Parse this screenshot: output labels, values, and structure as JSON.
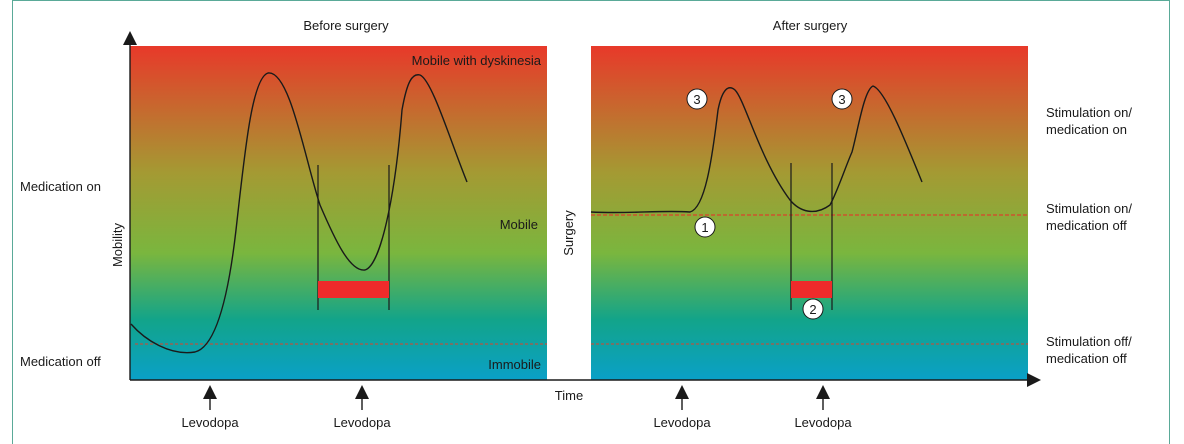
{
  "panels": {
    "before_title": "Before surgery",
    "after_title": "After surgery"
  },
  "axes": {
    "y_label": "Mobility",
    "x_label": "Time",
    "surgery_label": "Surgery"
  },
  "left_levels": {
    "medication_on": "Medication on",
    "medication_off": "Medication off"
  },
  "zones": {
    "top": "Mobile with dyskinesia",
    "middle": "Mobile",
    "bottom": "Immobile"
  },
  "right_levels": {
    "stim_on_med_on_1": "Stimulation on/",
    "stim_on_med_on_2": "medication on",
    "stim_on_med_off_1": "Stimulation on/",
    "stim_on_med_off_2": "medication off",
    "stim_off_med_off_1": "Stimulation off/",
    "stim_off_med_off_2": "medication off"
  },
  "doses": {
    "dose_1": "Levodopa",
    "dose_2": "Levodopa",
    "dose_3": "Levodopa",
    "dose_4": "Levodopa"
  },
  "markers": {
    "m1": "1",
    "m2": "2",
    "m3a": "3",
    "m3b": "3"
  },
  "colors": {
    "gradient_top": "#e8392a",
    "gradient_mid": "#7ab63e",
    "gradient_bottom": "#0aa0c8",
    "off_bar": "#ee2b2b",
    "threshold_line": "#d9432c",
    "frame": "#5aaa98"
  }
}
